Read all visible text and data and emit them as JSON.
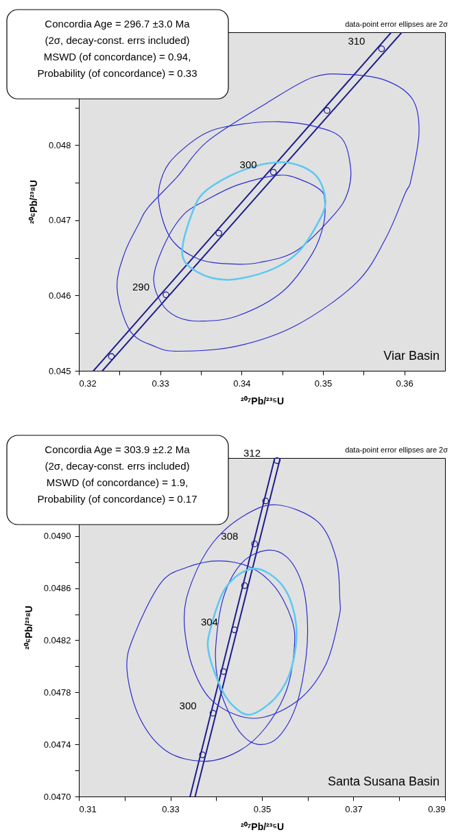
{
  "chart_data": [
    {
      "type": "line",
      "xlabel": "²⁰⁷Pb/²³⁵U",
      "ylabel": "²⁰⁶Pb/²³⁸U",
      "xlim": [
        0.32,
        0.365
      ],
      "ylim": [
        0.045,
        0.0495
      ],
      "xticks": [
        0.32,
        {
          "value": 0.325,
          "label": null
        },
        0.33,
        {
          "value": 0.335,
          "label": null
        },
        0.34,
        {
          "value": 0.345,
          "label": null
        },
        0.35,
        {
          "value": 0.355,
          "label": null
        },
        0.36
      ],
      "yticks": [
        0.045,
        {
          "value": 0.0455,
          "label": null
        },
        0.046,
        {
          "value": 0.0465,
          "label": null
        },
        0.047,
        {
          "value": 0.0475,
          "label": null
        },
        0.048,
        {
          "value": 0.0485,
          "label": null
        }
      ],
      "series": [
        {
          "color": "#1c1c8c",
          "x": [
            0.3218,
            0.3584
          ],
          "values": [
            0.045,
            0.0495
          ]
        },
        {
          "color": "#1c1c8c",
          "x": [
            0.3229,
            0.3597
          ],
          "values": [
            0.045,
            0.0495
          ]
        },
        {
          "type": "scatter",
          "color": "#1c1c8c",
          "marker": "circle",
          "x": [
            0.324,
            0.3307,
            0.3372,
            0.3439,
            0.3505,
            0.3572
          ],
          "values": [
            0.04519,
            0.04601,
            0.04683,
            0.04764,
            0.04846,
            0.04928
          ]
        }
      ],
      "annotations": [
        "Concordia Age = 296.7 ±3.0 Ma",
        "(2σ, decay-const. errs included)",
        "MSWD (of concordance) = 0.94,",
        "Probability (of concordance) = 0.33",
        "data-point error ellipses are 2σ",
        "Viar Basin",
        {
          "text": "290",
          "x": 0.3307,
          "y": 0.04601
        },
        {
          "text": "300",
          "x": 0.3439,
          "y": 0.04764
        },
        {
          "text": "310",
          "x": 0.3572,
          "y": 0.04928
        }
      ]
    },
    {
      "type": "line",
      "xlabel": "²⁰⁷Pb/²³⁵U",
      "ylabel": "²⁰⁶Pb/²³⁸U",
      "xlim": [
        0.31,
        0.39
      ],
      "ylim": [
        0.047,
        0.0496
      ],
      "xticks": [
        0.31,
        {
          "value": 0.32,
          "label": null
        },
        0.33,
        {
          "value": 0.34,
          "label": null
        },
        0.35,
        {
          "value": 0.36,
          "label": null
        },
        0.37,
        {
          "value": 0.38,
          "label": null
        },
        0.39
      ],
      "yticks": [
        {
          "value": 0.047,
          "label": "0.0470"
        },
        {
          "value": 0.0472,
          "label": null
        },
        0.0474,
        {
          "value": 0.0476,
          "label": null
        },
        0.0478,
        {
          "value": 0.048,
          "label": null
        },
        0.0482,
        {
          "value": 0.0484,
          "label": null
        },
        0.0486,
        {
          "value": 0.0488,
          "label": null
        },
        {
          "value": 0.049,
          "label": "0.0490"
        }
      ],
      "series": [
        {
          "color": "#1c1c8c",
          "x": [
            0.3343,
            0.3528
          ],
          "values": [
            0.047,
            0.0496
          ]
        },
        {
          "color": "#1c1c8c",
          "x": [
            0.3354,
            0.354
          ],
          "values": [
            0.047,
            0.0496
          ]
        },
        {
          "type": "scatter",
          "color": "#1c1c8c",
          "marker": "circle",
          "x": [
            0.337,
            0.3393,
            0.3416,
            0.344,
            0.3462,
            0.3484,
            0.3508,
            0.3533
          ],
          "values": [
            0.04732,
            0.04764,
            0.04796,
            0.04828,
            0.04862,
            0.04894,
            0.04927,
            0.04958
          ]
        }
      ],
      "annotations": [
        "Concordia Age = 303.9 ±2.2 Ma",
        "(2σ, decay-const. errs included)",
        "MSWD (of concordance) = 1.9,",
        "Probability (of concordance) = 0.17",
        "data-point error ellipses are 2σ",
        "Santa Susana Basin",
        {
          "text": "300",
          "x": 0.3393,
          "y": 0.04764
        },
        {
          "text": "304",
          "x": 0.344,
          "y": 0.04828
        },
        {
          "text": "308",
          "x": 0.3484,
          "y": 0.04894
        },
        {
          "text": "312",
          "x": 0.3533,
          "y": 0.04958
        }
      ]
    }
  ]
}
